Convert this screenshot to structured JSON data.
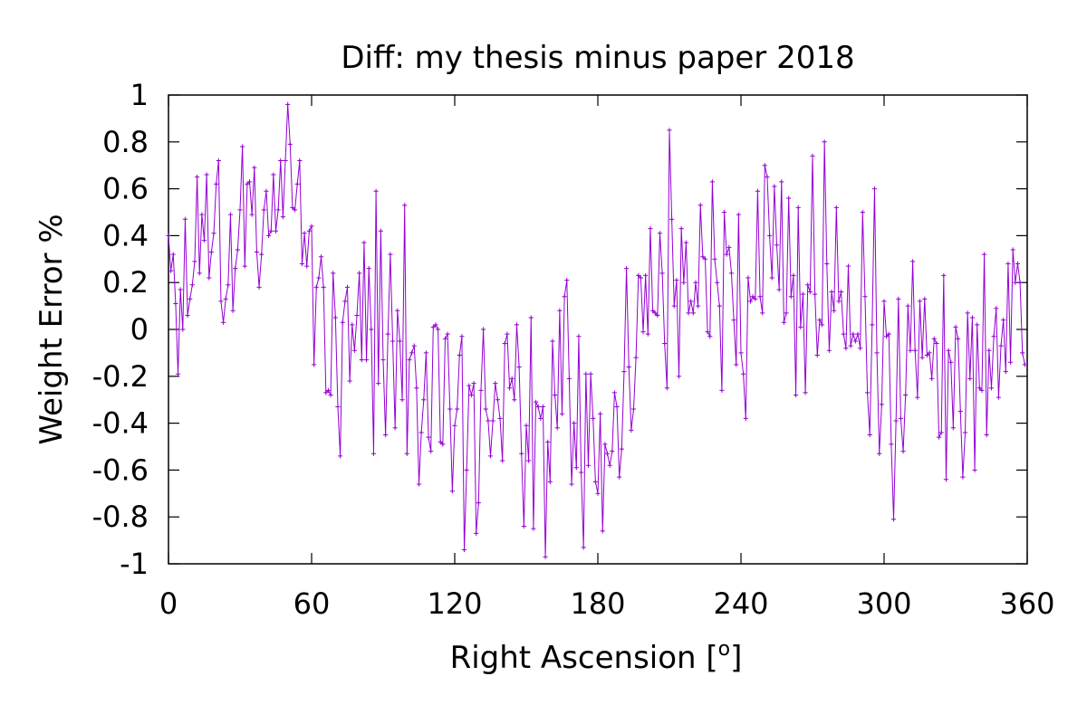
{
  "chart_data": {
    "type": "line",
    "title": "Diff:  my thesis minus paper 2018",
    "xlabel": "Right Ascension [",
    "xlabel_superscript": "o",
    "xlabel_suffix": "]",
    "ylabel": "Weight Error %",
    "xlim": [
      0,
      360
    ],
    "ylim": [
      -1,
      1
    ],
    "xticks": [
      0,
      60,
      120,
      180,
      240,
      300,
      360
    ],
    "yticks": [
      -1,
      -0.8,
      -0.6,
      -0.4,
      -0.2,
      0,
      0.2,
      0.4,
      0.6,
      0.8,
      1
    ],
    "xtick_labels": [
      "0",
      "60",
      "120",
      "180",
      "240",
      "300",
      "360"
    ],
    "ytick_labels": [
      "-1",
      "-0.8",
      "-0.6",
      "-0.4",
      "-0.2",
      "0",
      "0.2",
      "0.4",
      "0.6",
      "0.8",
      "1"
    ],
    "grid": false,
    "line_color": "#9400d3",
    "series": [
      {
        "x": [
          0,
          1,
          2,
          3,
          4,
          5,
          6,
          7,
          8,
          9,
          10,
          11,
          12,
          13,
          14,
          15,
          16,
          17,
          18,
          19,
          20,
          21,
          22,
          23,
          24,
          25,
          26,
          27,
          28,
          29,
          30,
          31,
          32,
          33,
          34,
          35,
          36,
          37,
          38,
          39,
          40,
          41,
          42,
          43,
          44,
          45,
          46,
          47,
          48,
          49,
          50,
          51,
          52,
          53,
          54,
          55,
          56,
          57,
          58,
          59,
          60,
          61,
          62,
          63,
          64,
          65,
          66,
          67,
          68,
          69,
          70,
          71,
          72,
          73,
          74,
          75,
          76,
          77,
          78,
          79,
          80,
          81,
          82,
          83,
          84,
          85,
          86,
          87,
          88,
          89,
          90,
          91,
          92,
          93,
          94,
          95,
          96,
          97,
          98,
          99,
          100,
          101,
          102,
          103,
          104,
          105,
          106,
          107,
          108,
          109,
          110,
          111,
          112,
          113,
          114,
          115,
          116,
          117,
          118,
          119,
          120,
          121,
          122,
          123,
          124,
          125,
          126,
          127,
          128,
          129,
          130,
          131,
          132,
          133,
          134,
          135,
          136,
          137,
          138,
          139,
          140,
          141,
          142,
          143,
          144,
          145,
          146,
          147,
          148,
          149,
          150,
          151,
          152,
          153,
          154,
          155,
          156,
          157,
          158,
          159,
          160,
          161,
          162,
          163,
          164,
          165,
          166,
          167,
          168,
          169,
          170,
          171,
          172,
          173,
          174,
          175,
          176,
          177,
          178,
          179,
          180,
          181,
          182,
          183,
          184,
          185,
          186,
          187,
          188,
          189,
          190,
          191,
          192,
          193,
          194,
          195,
          196,
          197,
          198,
          199,
          200,
          201,
          202,
          203,
          204,
          205,
          206,
          207,
          208,
          209,
          210,
          211,
          212,
          213,
          214,
          215,
          216,
          217,
          218,
          219,
          220,
          221,
          222,
          223,
          224,
          225,
          226,
          227,
          228,
          229,
          230,
          231,
          232,
          233,
          234,
          235,
          236,
          237,
          238,
          239,
          240,
          241,
          242,
          243,
          244,
          245,
          246,
          247,
          248,
          249,
          250,
          251,
          252,
          253,
          254,
          255,
          256,
          257,
          258,
          259,
          260,
          261,
          262,
          263,
          264,
          265,
          266,
          267,
          268,
          269,
          270,
          271,
          272,
          273,
          274,
          275,
          276,
          277,
          278,
          279,
          280,
          281,
          282,
          283,
          284,
          285,
          286,
          287,
          288,
          289,
          290,
          291,
          292,
          293,
          294,
          295,
          296,
          297,
          298,
          299,
          300,
          301,
          302,
          303,
          304,
          305,
          306,
          307,
          308,
          309,
          310,
          311,
          312,
          313,
          314,
          315,
          316,
          317,
          318,
          319,
          320,
          321,
          322,
          323,
          324,
          325,
          326,
          327,
          328,
          329,
          330,
          331,
          332,
          333,
          334,
          335,
          336,
          337,
          338,
          339,
          340,
          341,
          342,
          343,
          344,
          345,
          346,
          347,
          348,
          349,
          350,
          351,
          352,
          353,
          354,
          355,
          356,
          357,
          358,
          359
        ],
        "values": [
          0.4,
          0.25,
          0.32,
          0.11,
          -0.19,
          0.17,
          0.0,
          0.47,
          0.06,
          0.13,
          0.19,
          0.29,
          0.65,
          0.24,
          0.49,
          0.38,
          0.66,
          0.22,
          0.33,
          0.41,
          0.62,
          0.72,
          0.12,
          0.03,
          0.13,
          0.19,
          0.49,
          0.08,
          0.26,
          0.34,
          0.51,
          0.78,
          0.27,
          0.62,
          0.63,
          0.49,
          0.69,
          0.33,
          0.18,
          0.32,
          0.51,
          0.59,
          0.4,
          0.42,
          0.66,
          0.42,
          0.51,
          0.72,
          0.48,
          0.72,
          0.96,
          0.79,
          0.52,
          0.51,
          0.62,
          0.72,
          0.28,
          0.41,
          0.27,
          0.42,
          0.44,
          -0.15,
          0.18,
          0.22,
          0.31,
          0.18,
          -0.27,
          -0.26,
          -0.28,
          0.24,
          0.05,
          -0.33,
          -0.54,
          0.03,
          0.12,
          0.18,
          -0.22,
          0.02,
          -0.09,
          0.06,
          0.24,
          -0.13,
          0.37,
          -0.13,
          0.26,
          0.0,
          -0.53,
          0.59,
          -0.23,
          0.42,
          -0.13,
          -0.45,
          -0.02,
          0.32,
          -0.05,
          -0.42,
          0.08,
          -0.05,
          -0.3,
          0.53,
          -0.53,
          -0.13,
          -0.1,
          -0.07,
          -0.25,
          -0.66,
          -0.44,
          -0.3,
          -0.1,
          -0.46,
          -0.52,
          0.01,
          0.02,
          0.0,
          -0.48,
          -0.49,
          -0.04,
          -0.02,
          -0.34,
          -0.69,
          -0.41,
          -0.34,
          -0.11,
          -0.03,
          -0.94,
          -0.6,
          -0.24,
          -0.28,
          -0.23,
          -0.87,
          -0.74,
          -0.26,
          0.0,
          -0.34,
          -0.39,
          -0.54,
          -0.39,
          -0.23,
          -0.3,
          -0.38,
          -0.56,
          -0.06,
          -0.02,
          -0.25,
          -0.21,
          -0.3,
          0.02,
          -0.16,
          -0.53,
          -0.84,
          -0.41,
          -0.56,
          0.05,
          -0.85,
          -0.31,
          -0.33,
          -0.38,
          -0.33,
          -0.97,
          -0.48,
          -0.65,
          -0.05,
          -0.28,
          -0.42,
          0.08,
          -0.36,
          0.14,
          0.21,
          -0.21,
          -0.66,
          -0.4,
          -0.59,
          -0.03,
          -0.61,
          -0.93,
          -0.19,
          -0.58,
          -0.19,
          -0.38,
          -0.65,
          -0.7,
          -0.36,
          -0.86,
          -0.49,
          -0.53,
          -0.58,
          -0.52,
          -0.27,
          -0.33,
          -0.63,
          -0.51,
          -0.18,
          0.26,
          -0.16,
          -0.43,
          -0.34,
          -0.12,
          0.23,
          0.22,
          -0.01,
          0.23,
          -0.02,
          0.43,
          0.08,
          0.07,
          0.06,
          0.41,
          0.24,
          -0.06,
          -0.25,
          0.85,
          0.47,
          0.1,
          0.21,
          -0.2,
          0.43,
          0.2,
          0.37,
          0.07,
          0.12,
          0.07,
          0.2,
          0.1,
          0.53,
          0.31,
          0.3,
          -0.01,
          -0.03,
          0.63,
          0.3,
          0.2,
          0.1,
          -0.26,
          0.5,
          0.32,
          0.35,
          0.24,
          0.04,
          -0.15,
          0.49,
          -0.1,
          -0.19,
          -0.38,
          0.22,
          0.12,
          0.14,
          0.13,
          0.59,
          0.14,
          0.07,
          0.7,
          0.65,
          0.4,
          0.22,
          0.61,
          0.36,
          0.17,
          0.63,
          0.03,
          0.07,
          0.56,
          0.14,
          0.23,
          -0.28,
          0.52,
          0.01,
          0.15,
          -0.27,
          0.19,
          0.16,
          0.74,
          0.15,
          -0.11,
          0.04,
          0.02,
          0.8,
          0.28,
          -0.09,
          0.16,
          0.08,
          0.52,
          0.12,
          0.16,
          -0.02,
          -0.08,
          0.27,
          -0.07,
          -0.02,
          -0.05,
          -0.02,
          -0.08,
          0.5,
          0.14,
          -0.27,
          -0.45,
          0.02,
          0.6,
          -0.1,
          -0.53,
          -0.32,
          0.12,
          -0.03,
          -0.02,
          -0.49,
          -0.81,
          -0.39,
          0.13,
          -0.38,
          -0.52,
          -0.28,
          0.1,
          -0.09,
          0.29,
          -0.09,
          -0.29,
          0.12,
          -0.12,
          0.13,
          -0.11,
          -0.1,
          -0.21,
          -0.04,
          -0.06,
          -0.46,
          -0.44,
          0.23,
          -0.64,
          -0.09,
          -0.14,
          -0.42,
          0.01,
          -0.04,
          -0.35,
          -0.63,
          -0.44,
          0.07,
          -0.21,
          0.05,
          -0.6,
          0.02,
          -0.25,
          -0.26,
          0.32,
          -0.45,
          -0.09,
          -0.25,
          -0.03,
          0.09,
          -0.29,
          -0.07,
          0.04,
          -0.18,
          0.28,
          -0.14,
          0.34,
          0.2,
          0.28,
          0.2,
          -0.1,
          -0.15
        ]
      }
    ]
  }
}
